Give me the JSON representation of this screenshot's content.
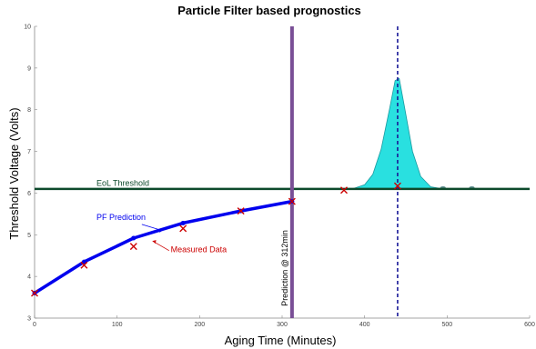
{
  "chart_data": {
    "type": "line",
    "title": "Particle Filter based prognostics",
    "xlabel": "Aging Time (Minutes)",
    "ylabel": "Threshold Voltage (Volts)",
    "xlim": [
      0,
      600
    ],
    "ylim": [
      3,
      10
    ],
    "xticks": [
      0,
      100,
      200,
      300,
      400,
      500,
      600
    ],
    "yticks": [
      3,
      4,
      5,
      6,
      7,
      8,
      9,
      10
    ],
    "grid": false,
    "series": [
      {
        "role": "prediction",
        "color": "#0000ee",
        "x": [
          0,
          60,
          120,
          180,
          250,
          312
        ],
        "y": [
          3.6,
          4.35,
          4.92,
          5.28,
          5.57,
          5.8
        ]
      },
      {
        "role": "measured",
        "color": "#cc0000",
        "marker": "x",
        "x": [
          0,
          60,
          120,
          180,
          250,
          312,
          375,
          440
        ],
        "y": [
          3.6,
          4.27,
          4.72,
          5.15,
          5.57,
          5.8,
          6.07,
          6.17
        ]
      }
    ],
    "threshold": {
      "label": "EoL Threshold",
      "y": 6.1,
      "color": "#0d4a2c"
    },
    "prediction_line": {
      "x": 312,
      "label": "Prediction @ 312min",
      "color": "#7a4f96"
    },
    "eol_mean_line": {
      "x": 440,
      "color": "#1a1a99"
    },
    "pdf": {
      "color": "#29e0e0",
      "base": 6.1,
      "points": [
        [
          385,
          6.1
        ],
        [
          400,
          6.2
        ],
        [
          410,
          6.45
        ],
        [
          420,
          7.05
        ],
        [
          430,
          8.0
        ],
        [
          437,
          8.7
        ],
        [
          442,
          8.75
        ],
        [
          448,
          8.1
        ],
        [
          458,
          7.0
        ],
        [
          468,
          6.4
        ],
        [
          480,
          6.15
        ],
        [
          495,
          6.1
        ]
      ]
    },
    "small_bumps": [
      {
        "x": 495,
        "y": 6.13
      },
      {
        "x": 530,
        "y": 6.13
      }
    ],
    "annotations": {
      "pf_prediction": "PF Prediction",
      "measured_data": "Measured Data"
    }
  }
}
